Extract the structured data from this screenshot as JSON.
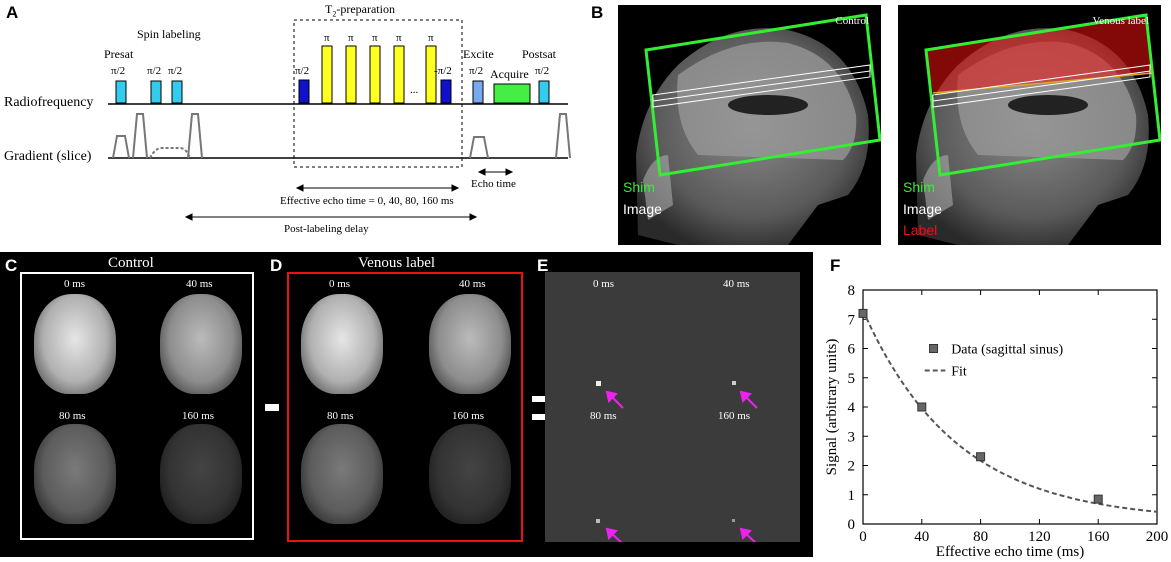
{
  "panels": {
    "a": "A",
    "b": "B",
    "c": "C",
    "d": "D",
    "e": "E",
    "f": "F"
  },
  "panel_a": {
    "t2_prep_title": "T",
    "t2_prep_sub": "2",
    "t2_prep_rest": "-preparation",
    "spin_labeling": "Spin labeling",
    "presat": "Presat",
    "excite": "Excite",
    "postsat": "Postsat",
    "acquire": "Acquire",
    "radiofrequency": "Radiofrequency",
    "gradient": "Gradient (slice)",
    "pulse_pi2": "π/2",
    "pulse_pi": "π",
    "pulse_neg_pi2": "-π/2",
    "ellipsis": "...",
    "echo_time": "Echo time",
    "effective_echo_time": "Effective echo time = 0, 40, 80, 160 ms",
    "post_labeling_delay": "Post-labeling delay",
    "colors": {
      "cyan": "#33ccee",
      "yellow": "#ffff22",
      "blue": "#1111cc",
      "lightblue": "#77aaee",
      "green": "#44ee44"
    }
  },
  "panel_b": {
    "control": "Control",
    "venous_label": "Venous label",
    "legend_shim": "Shim",
    "legend_image": "Image",
    "legend_label": "Label",
    "colors": {
      "shim": "#33ee33",
      "image": "#ffffff",
      "label": "#ee1111"
    }
  },
  "panel_c": {
    "title": "Control",
    "times": [
      "0 ms",
      "40 ms",
      "80 ms",
      "160 ms"
    ]
  },
  "panel_d": {
    "title": "Venous label",
    "times": [
      "0 ms",
      "40 ms",
      "80 ms",
      "160 ms"
    ]
  },
  "panel_e": {
    "times": [
      "0 ms",
      "40 ms",
      "80 ms",
      "160 ms"
    ],
    "arrow_color": "#ee22ee"
  },
  "chart_data": {
    "type": "scatter",
    "xlabel": "Effective echo time (ms)",
    "ylabel": "Signal (arbitrary units)",
    "xlim": [
      0,
      200
    ],
    "ylim": [
      0,
      8
    ],
    "xticks": [
      0,
      40,
      80,
      120,
      160,
      200
    ],
    "yticks": [
      0,
      1,
      2,
      3,
      4,
      5,
      6,
      7,
      8
    ],
    "series": [
      {
        "name": "Data (sagittal sinus)",
        "kind": "points",
        "x": [
          0,
          40,
          80,
          160
        ],
        "y": [
          7.2,
          4.0,
          2.3,
          0.85
        ]
      },
      {
        "name": "Fit",
        "kind": "curve",
        "model": "exponential",
        "amplitude": 7.2,
        "decay_ms": 64,
        "offset": 0.1
      }
    ],
    "legend_position": "top-right",
    "grid": false
  }
}
